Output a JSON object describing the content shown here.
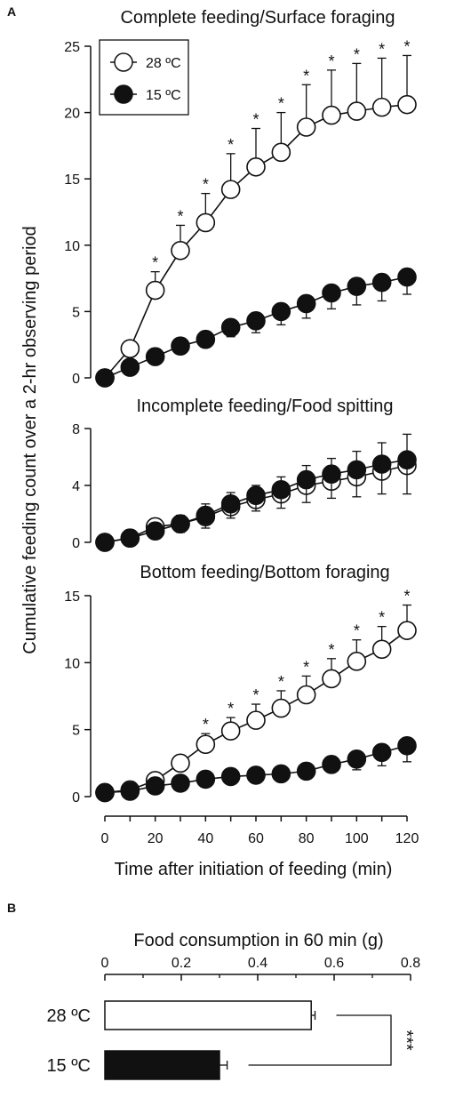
{
  "figure": {
    "panel_a_letter": "A",
    "panel_b_letter": "B",
    "y_axis_label": "Cumulative feeding count over a 2-hr observing period",
    "x_axis_label": "Time after initiation of feeding (min)",
    "colors": {
      "ink": "#111111",
      "open_marker": "#ffffff",
      "filled_marker": "#111111"
    }
  },
  "chart_data": [
    {
      "type": "line",
      "title": "Complete feeding/Surface foraging",
      "x": [
        0,
        10,
        20,
        30,
        40,
        50,
        60,
        70,
        80,
        90,
        100,
        110,
        120
      ],
      "xticks": [
        "0",
        "20",
        "40",
        "60",
        "80",
        "100",
        "120"
      ],
      "xlim": [
        0,
        120
      ],
      "ylim": [
        0,
        25
      ],
      "yticks": [
        "0",
        "5",
        "10",
        "15",
        "20",
        "25"
      ],
      "legend": {
        "position": "top-left",
        "entries": [
          "28 ºC",
          "15 ºC"
        ]
      },
      "series": [
        {
          "name": "28 ºC",
          "marker": "open",
          "values": [
            0,
            2.2,
            6.6,
            9.6,
            11.7,
            14.2,
            15.9,
            17.0,
            18.9,
            19.8,
            20.1,
            20.4,
            20.6
          ],
          "errors": [
            0,
            0,
            1.4,
            1.9,
            2.2,
            2.7,
            2.9,
            3.0,
            3.2,
            3.4,
            3.6,
            3.7,
            3.7
          ]
        },
        {
          "name": "15 ºC",
          "marker": "filled",
          "values": [
            0,
            0.8,
            1.6,
            2.4,
            2.9,
            3.8,
            4.3,
            5.0,
            5.6,
            6.4,
            6.9,
            7.2,
            7.6
          ],
          "errors": [
            0,
            0,
            0,
            0,
            0.5,
            0.7,
            0.9,
            1.0,
            1.1,
            1.2,
            1.4,
            1.4,
            1.3
          ]
        }
      ],
      "significance": {
        "marker": "*",
        "x": [
          20,
          30,
          40,
          50,
          60,
          70,
          80,
          90,
          100,
          110,
          120
        ]
      }
    },
    {
      "type": "line",
      "title": "Incomplete feeding/Food spitting",
      "x": [
        0,
        10,
        20,
        30,
        40,
        50,
        60,
        70,
        80,
        90,
        100,
        110,
        120
      ],
      "xlim": [
        0,
        120
      ],
      "ylim": [
        0,
        8
      ],
      "yticks": [
        "0",
        "4",
        "8"
      ],
      "series": [
        {
          "name": "28 ºC",
          "marker": "open",
          "values": [
            0,
            0.3,
            1.1,
            1.3,
            1.8,
            2.5,
            3.0,
            3.4,
            4.0,
            4.3,
            4.6,
            5.0,
            5.4
          ],
          "errors": [
            0,
            0,
            0.5,
            0.6,
            0.9,
            1.0,
            1.0,
            1.2,
            1.4,
            1.6,
            1.8,
            2.0,
            2.2
          ]
        },
        {
          "name": "15 ºC",
          "marker": "filled",
          "values": [
            0,
            0.3,
            0.8,
            1.3,
            1.9,
            2.7,
            3.3,
            3.7,
            4.4,
            4.8,
            5.1,
            5.5,
            5.8
          ],
          "errors": [
            0,
            0,
            0.4,
            0.6,
            0.9,
            1.0,
            1.1,
            1.3,
            1.6,
            1.7,
            1.9,
            2.1,
            2.4
          ]
        }
      ]
    },
    {
      "type": "line",
      "title": "Bottom feeding/Bottom foraging",
      "x": [
        0,
        10,
        20,
        30,
        40,
        50,
        60,
        70,
        80,
        90,
        100,
        110,
        120
      ],
      "xticks": [
        "0",
        "20",
        "40",
        "60",
        "80",
        "100",
        "120"
      ],
      "xlim": [
        0,
        120
      ],
      "ylim": [
        0,
        15
      ],
      "yticks": [
        "0",
        "5",
        "10",
        "15"
      ],
      "series": [
        {
          "name": "28 ºC",
          "marker": "open",
          "values": [
            0.3,
            0.5,
            1.2,
            2.5,
            3.9,
            4.9,
            5.7,
            6.6,
            7.6,
            8.8,
            10.1,
            11.0,
            12.4
          ],
          "errors": [
            0,
            0,
            0,
            0,
            0.8,
            1.0,
            1.2,
            1.3,
            1.4,
            1.5,
            1.6,
            1.7,
            1.9
          ]
        },
        {
          "name": "15 ºC",
          "marker": "filled",
          "values": [
            0.3,
            0.4,
            0.8,
            1.0,
            1.3,
            1.5,
            1.6,
            1.7,
            1.9,
            2.4,
            2.8,
            3.3,
            3.8
          ],
          "errors": [
            0,
            0,
            0,
            0,
            0,
            0,
            0,
            0,
            0.4,
            0.6,
            0.8,
            1.0,
            1.2
          ]
        }
      ],
      "significance": {
        "marker": "*",
        "x": [
          40,
          50,
          60,
          70,
          80,
          90,
          100,
          110,
          120
        ]
      }
    },
    {
      "type": "bar",
      "orientation": "horizontal",
      "title": "Food consumption in 60 min (g)",
      "categories": [
        "28 ºC",
        "15 ºC"
      ],
      "values": [
        0.54,
        0.3
      ],
      "errors": [
        0.01,
        0.02
      ],
      "bar_fill": [
        "#ffffff",
        "#111111"
      ],
      "xlim": [
        0,
        0.8
      ],
      "xticks": [
        "0",
        "0.2",
        "0.4",
        "0.6",
        "0.8"
      ],
      "significance": "***"
    }
  ]
}
